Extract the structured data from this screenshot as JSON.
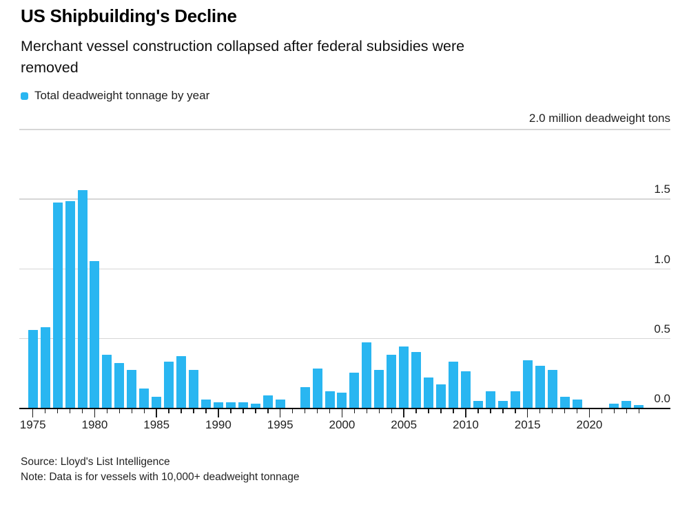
{
  "header": {
    "title": "US Shipbuilding's Decline",
    "subtitle_lines": [
      "Merchant vessel construction collapsed after federal subsidies were",
      "removed"
    ]
  },
  "legend": {
    "label": "Total deadweight tonnage by year"
  },
  "colors": {
    "bar": "#29b6f1",
    "grid": "#d6d6d6",
    "axis": "#000000",
    "text": "#1a1a1a"
  },
  "chart_data": {
    "type": "bar",
    "title": "US Shipbuilding's Decline",
    "subtitle": "Merchant vessel construction collapsed after federal subsidies were removed",
    "series_name": "Total deadweight tonnage by year",
    "unit_label": "2.0 million deadweight tons",
    "ylabel": "million deadweight tons",
    "xlabel": "",
    "ylim": [
      0,
      2.0
    ],
    "yticks": [
      0.0,
      0.5,
      1.0,
      1.5
    ],
    "gridlines": [
      0.5,
      1.0,
      1.5,
      2.0
    ],
    "xticks": [
      1975,
      1980,
      1985,
      1990,
      1995,
      2000,
      2005,
      2010,
      2015,
      2020
    ],
    "grid": true,
    "legend_position": "top-left",
    "x": [
      1975,
      1976,
      1977,
      1978,
      1979,
      1980,
      1981,
      1982,
      1983,
      1984,
      1985,
      1986,
      1987,
      1988,
      1989,
      1990,
      1991,
      1992,
      1993,
      1994,
      1995,
      1996,
      1997,
      1998,
      1999,
      2000,
      2001,
      2002,
      2003,
      2004,
      2005,
      2006,
      2007,
      2008,
      2009,
      2010,
      2011,
      2012,
      2013,
      2014,
      2015,
      2016,
      2017,
      2018,
      2019,
      2020,
      2021,
      2022,
      2023,
      2024
    ],
    "values": [
      0.56,
      0.58,
      1.47,
      1.48,
      1.56,
      1.05,
      0.38,
      0.32,
      0.27,
      0.14,
      0.08,
      0.33,
      0.37,
      0.27,
      0.06,
      0.04,
      0.04,
      0.04,
      0.03,
      0.09,
      0.06,
      0.0,
      0.15,
      0.28,
      0.12,
      0.11,
      0.25,
      0.47,
      0.27,
      0.38,
      0.44,
      0.4,
      0.22,
      0.17,
      0.33,
      0.26,
      0.05,
      0.12,
      0.05,
      0.12,
      0.34,
      0.3,
      0.27,
      0.08,
      0.06,
      0.0,
      0.0,
      0.03,
      0.05,
      0.02
    ]
  },
  "footer": {
    "source": "Source: Lloyd's List Intelligence",
    "note": "Note: Data is for vessels with 10,000+ deadweight tonnage"
  }
}
